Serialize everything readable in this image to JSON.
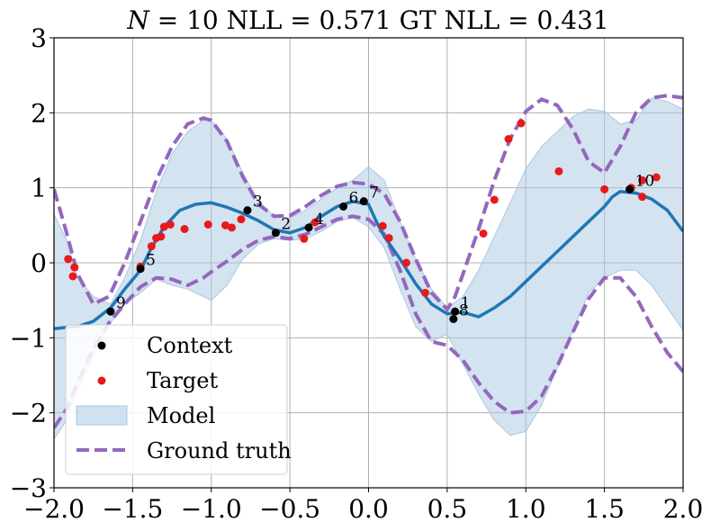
{
  "chart_data": {
    "type": "line",
    "title": "N = 10 NLL = 0.571 GT NLL = 0.431",
    "title_parts": {
      "symbol": "N",
      "rest": " = 10 NLL = 0.571 GT NLL = 0.431"
    },
    "xlim": [
      -2.0,
      2.0
    ],
    "ylim": [
      -3,
      3
    ],
    "x_ticks": [
      -2.0,
      -1.5,
      -1.0,
      -0.5,
      0.0,
      0.5,
      1.0,
      1.5,
      2.0
    ],
    "x_tick_labels": [
      "−2.0",
      "−1.5",
      "−1.0",
      "−0.5",
      "0.0",
      "0.5",
      "1.0",
      "1.5",
      "2.0"
    ],
    "y_ticks": [
      -3,
      -2,
      -1,
      0,
      1,
      2,
      3
    ],
    "y_tick_labels": [
      "−3",
      "−2",
      "−1",
      "0",
      "1",
      "2",
      "3"
    ],
    "grid": true,
    "legend_position": "lower-left",
    "legend": [
      {
        "key": "context",
        "label": "Context"
      },
      {
        "key": "target",
        "label": "Target"
      },
      {
        "key": "model",
        "label": "Model"
      },
      {
        "key": "ground_truth",
        "label": "Ground truth"
      }
    ],
    "colors": {
      "context": "#000000",
      "target": "#e8191c",
      "model_line": "#1f77b4",
      "model_band": "#a9c8e1",
      "ground_truth": "#9467bd",
      "grid": "#b0b0b0"
    },
    "context_points": [
      {
        "label": "1",
        "x": 0.55,
        "y": -0.65
      },
      {
        "label": "2",
        "x": -0.59,
        "y": 0.4
      },
      {
        "label": "3",
        "x": -0.77,
        "y": 0.7
      },
      {
        "label": "4",
        "x": -0.38,
        "y": 0.47
      },
      {
        "label": "5",
        "x": -1.45,
        "y": -0.08
      },
      {
        "label": "6",
        "x": -0.16,
        "y": 0.75
      },
      {
        "label": "7",
        "x": -0.03,
        "y": 0.82
      },
      {
        "label": "8",
        "x": 0.54,
        "y": -0.75
      },
      {
        "label": "9",
        "x": -1.64,
        "y": -0.65
      },
      {
        "label": "10",
        "x": 1.66,
        "y": 0.98
      }
    ],
    "target_points": [
      {
        "x": -1.91,
        "y": 0.05
      },
      {
        "x": -1.87,
        "y": -0.06
      },
      {
        "x": -1.88,
        "y": -0.18
      },
      {
        "x": -1.45,
        "y": -0.05
      },
      {
        "x": -1.38,
        "y": 0.22
      },
      {
        "x": -1.35,
        "y": 0.33
      },
      {
        "x": -1.32,
        "y": 0.35
      },
      {
        "x": -1.3,
        "y": 0.48
      },
      {
        "x": -1.26,
        "y": 0.51
      },
      {
        "x": -1.17,
        "y": 0.45
      },
      {
        "x": -1.02,
        "y": 0.51
      },
      {
        "x": -0.91,
        "y": 0.5
      },
      {
        "x": -0.87,
        "y": 0.47
      },
      {
        "x": -0.81,
        "y": 0.58
      },
      {
        "x": -0.41,
        "y": 0.32
      },
      {
        "x": -0.34,
        "y": 0.54
      },
      {
        "x": 0.09,
        "y": 0.49
      },
      {
        "x": 0.13,
        "y": 0.33
      },
      {
        "x": 0.24,
        "y": 0.0
      },
      {
        "x": 0.36,
        "y": -0.4
      },
      {
        "x": 0.73,
        "y": 0.39
      },
      {
        "x": 0.8,
        "y": 0.84
      },
      {
        "x": 0.89,
        "y": 1.65
      },
      {
        "x": 0.97,
        "y": 1.86
      },
      {
        "x": 1.21,
        "y": 1.22
      },
      {
        "x": 1.5,
        "y": 0.98
      },
      {
        "x": 1.67,
        "y": 1.0
      },
      {
        "x": 1.74,
        "y": 1.1
      },
      {
        "x": 1.74,
        "y": 0.88
      },
      {
        "x": 1.83,
        "y": 1.14
      }
    ],
    "model_mean": {
      "x": [
        -2.0,
        -1.92,
        -1.85,
        -1.75,
        -1.64,
        -1.55,
        -1.45,
        -1.38,
        -1.3,
        -1.2,
        -1.1,
        -1.0,
        -0.9,
        -0.8,
        -0.7,
        -0.6,
        -0.5,
        -0.4,
        -0.3,
        -0.2,
        -0.1,
        0.0,
        0.05,
        0.1,
        0.2,
        0.3,
        0.4,
        0.5,
        0.6,
        0.7,
        0.8,
        0.9,
        1.0,
        1.1,
        1.2,
        1.3,
        1.4,
        1.5,
        1.55,
        1.6,
        1.7,
        1.8,
        1.9,
        2.0
      ],
      "y": [
        -0.88,
        -0.86,
        -0.85,
        -0.78,
        -0.6,
        -0.35,
        -0.1,
        0.2,
        0.48,
        0.7,
        0.78,
        0.8,
        0.74,
        0.66,
        0.56,
        0.44,
        0.4,
        0.47,
        0.62,
        0.75,
        0.82,
        0.78,
        0.55,
        0.35,
        0.05,
        -0.28,
        -0.55,
        -0.68,
        -0.66,
        -0.72,
        -0.6,
        -0.45,
        -0.25,
        -0.05,
        0.15,
        0.35,
        0.55,
        0.75,
        0.88,
        0.95,
        0.93,
        0.85,
        0.7,
        0.42
      ]
    },
    "model_upper": {
      "x": [
        -2.0,
        -1.92,
        -1.85,
        -1.75,
        -1.64,
        -1.55,
        -1.45,
        -1.35,
        -1.25,
        -1.15,
        -1.05,
        -1.0,
        -0.9,
        -0.8,
        -0.7,
        -0.6,
        -0.5,
        -0.4,
        -0.3,
        -0.2,
        -0.1,
        0.0,
        0.1,
        0.2,
        0.3,
        0.4,
        0.5,
        0.6,
        0.7,
        0.8,
        0.9,
        1.0,
        1.1,
        1.2,
        1.3,
        1.4,
        1.5,
        1.6,
        1.7,
        1.8,
        1.9,
        2.0
      ],
      "y": [
        0.65,
        0.3,
        -0.2,
        -0.45,
        -0.55,
        -0.2,
        0.3,
        0.95,
        1.45,
        1.75,
        1.9,
        1.9,
        1.65,
        1.2,
        0.82,
        0.62,
        0.6,
        0.7,
        0.85,
        1.0,
        1.1,
        1.28,
        1.1,
        0.55,
        0.05,
        -0.35,
        -0.6,
        -0.45,
        -0.1,
        0.35,
        0.8,
        1.25,
        1.55,
        1.75,
        1.95,
        2.05,
        2.02,
        1.85,
        1.9,
        2.2,
        2.15,
        2.05
      ]
    },
    "model_lower": {
      "x": [
        -2.0,
        -1.92,
        -1.85,
        -1.75,
        -1.64,
        -1.55,
        -1.45,
        -1.35,
        -1.25,
        -1.15,
        -1.05,
        -1.0,
        -0.9,
        -0.8,
        -0.7,
        -0.6,
        -0.5,
        -0.4,
        -0.3,
        -0.2,
        -0.1,
        0.0,
        0.1,
        0.2,
        0.3,
        0.4,
        0.5,
        0.6,
        0.7,
        0.8,
        0.9,
        1.0,
        1.1,
        1.2,
        1.3,
        1.4,
        1.5,
        1.6,
        1.7,
        1.8,
        1.9,
        2.0
      ],
      "y": [
        -2.35,
        -2.1,
        -1.7,
        -1.25,
        -0.8,
        -0.55,
        -0.4,
        -0.22,
        -0.3,
        -0.35,
        -0.45,
        -0.5,
        -0.3,
        0.05,
        0.25,
        0.32,
        0.3,
        0.32,
        0.42,
        0.55,
        0.6,
        0.48,
        0.2,
        -0.35,
        -0.85,
        -1.05,
        -0.95,
        -1.35,
        -1.75,
        -2.1,
        -2.3,
        -2.25,
        -1.9,
        -1.4,
        -0.9,
        -0.4,
        -0.2,
        -0.1,
        -0.1,
        -0.3,
        -0.6,
        -0.9
      ]
    },
    "ground_truth_upper": {
      "x": [
        -2.0,
        -1.92,
        -1.85,
        -1.75,
        -1.65,
        -1.55,
        -1.45,
        -1.35,
        -1.25,
        -1.15,
        -1.05,
        -1.0,
        -0.9,
        -0.8,
        -0.7,
        -0.6,
        -0.5,
        -0.4,
        -0.3,
        -0.2,
        -0.1,
        0.0,
        0.1,
        0.2,
        0.3,
        0.4,
        0.5,
        0.55,
        0.6,
        0.7,
        0.8,
        0.9,
        1.0,
        1.1,
        1.2,
        1.3,
        1.4,
        1.5,
        1.6,
        1.7,
        1.8,
        1.9,
        2.0
      ],
      "y": [
        0.98,
        0.4,
        -0.15,
        -0.55,
        -0.45,
        0.0,
        0.55,
        1.1,
        1.55,
        1.85,
        1.93,
        1.9,
        1.62,
        1.15,
        0.78,
        0.62,
        0.63,
        0.75,
        0.9,
        1.02,
        1.07,
        1.05,
        0.92,
        0.55,
        0.05,
        -0.4,
        -0.62,
        -0.45,
        -0.15,
        0.45,
        1.1,
        1.65,
        2.02,
        2.18,
        2.1,
        1.78,
        1.35,
        1.2,
        1.55,
        2.0,
        2.2,
        2.23,
        2.2
      ]
    },
    "ground_truth_lower": {
      "x": [
        -2.0,
        -1.92,
        -1.85,
        -1.75,
        -1.65,
        -1.55,
        -1.45,
        -1.35,
        -1.25,
        -1.15,
        -1.05,
        -1.0,
        -0.9,
        -0.8,
        -0.7,
        -0.6,
        -0.5,
        -0.4,
        -0.3,
        -0.2,
        -0.1,
        0.0,
        0.1,
        0.2,
        0.3,
        0.4,
        0.5,
        0.6,
        0.7,
        0.8,
        0.9,
        1.0,
        1.1,
        1.2,
        1.3,
        1.4,
        1.5,
        1.6,
        1.7,
        1.8,
        1.9,
        2.0
      ],
      "y": [
        -2.2,
        -1.95,
        -1.6,
        -1.15,
        -0.8,
        -0.55,
        -0.32,
        -0.2,
        -0.22,
        -0.3,
        -0.2,
        -0.12,
        0.02,
        0.18,
        0.3,
        0.35,
        0.32,
        0.38,
        0.48,
        0.58,
        0.62,
        0.58,
        0.38,
        -0.1,
        -0.68,
        -1.05,
        -1.1,
        -1.3,
        -1.6,
        -1.85,
        -2.0,
        -1.98,
        -1.78,
        -1.38,
        -0.92,
        -0.48,
        -0.2,
        -0.2,
        -0.45,
        -0.85,
        -1.2,
        -1.45
      ]
    }
  }
}
